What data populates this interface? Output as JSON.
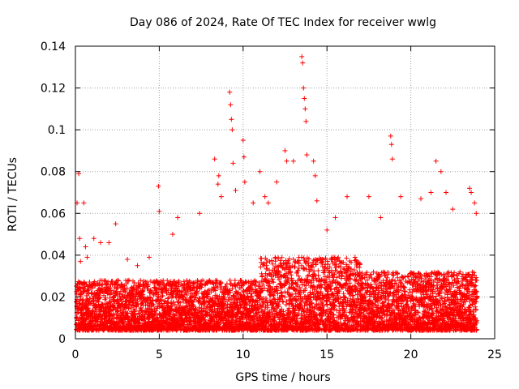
{
  "chart_data": {
    "type": "scatter",
    "title": "Day 086 of 2024, Rate Of TEC Index for receiver wwlg",
    "xlabel": "GPS time / hours",
    "ylabel": "ROTI / TECUs",
    "xlim": [
      0,
      25
    ],
    "ylim": [
      0,
      0.14
    ],
    "x_ticks": [
      0,
      5,
      10,
      15,
      20,
      25
    ],
    "y_ticks": [
      0,
      0.02,
      0.04,
      0.06,
      0.08,
      0.1,
      0.12,
      0.14
    ],
    "x_tick_labels": [
      "0",
      "5",
      "10",
      "15",
      "20",
      "25"
    ],
    "y_tick_labels": [
      "0",
      "0.02",
      "0.04",
      "0.06",
      "0.08",
      "0.1",
      "0.12",
      "0.14"
    ],
    "grid": true,
    "marker": "+",
    "color": "#ff0000",
    "series": [
      {
        "name": "ROTI",
        "x": [
          0.1,
          0.2,
          0.25,
          0.3,
          0.5,
          0.6,
          0.7,
          1.1,
          1.5,
          2.0,
          2.4,
          3.1,
          3.7,
          4.4,
          4.95,
          5.0,
          5.8,
          6.1,
          7.4,
          8.3,
          8.5,
          8.55,
          8.7,
          9.2,
          9.25,
          9.3,
          9.35,
          9.4,
          9.55,
          10.0,
          10.05,
          10.1,
          10.6,
          11.0,
          11.3,
          11.5,
          12.0,
          12.5,
          12.6,
          13.0,
          13.5,
          13.55,
          13.6,
          13.65,
          13.7,
          13.75,
          13.8,
          14.2,
          14.3,
          14.4,
          15.0,
          15.5,
          16.2,
          17.5,
          18.2,
          18.8,
          18.85,
          18.9,
          19.4,
          20.6,
          21.2,
          21.5,
          21.8,
          22.1,
          22.5,
          23.5,
          23.6,
          23.8,
          23.9,
          0.5,
          1.0,
          1.5,
          2.0,
          2.5,
          3.0,
          3.5,
          4.0,
          4.5,
          5.0,
          5.5,
          6.0,
          6.5,
          7.0,
          7.5,
          8.0,
          8.5,
          9.0,
          9.5,
          10.0,
          10.5,
          11.0,
          11.5,
          12.0,
          12.5,
          13.0,
          13.5,
          14.0,
          14.5,
          15.0,
          15.5,
          16.0,
          16.5,
          17.0,
          17.5,
          18.0,
          18.5,
          19.0,
          19.5,
          20.0,
          20.5,
          21.0,
          21.5,
          22.0,
          22.5,
          23.0,
          23.5
        ],
        "y": [
          0.065,
          0.079,
          0.048,
          0.037,
          0.065,
          0.044,
          0.039,
          0.048,
          0.046,
          0.046,
          0.055,
          0.038,
          0.035,
          0.039,
          0.073,
          0.061,
          0.05,
          0.058,
          0.06,
          0.086,
          0.074,
          0.078,
          0.068,
          0.118,
          0.112,
          0.105,
          0.1,
          0.084,
          0.071,
          0.095,
          0.087,
          0.075,
          0.065,
          0.08,
          0.068,
          0.065,
          0.075,
          0.09,
          0.085,
          0.085,
          0.135,
          0.132,
          0.12,
          0.115,
          0.11,
          0.104,
          0.088,
          0.085,
          0.078,
          0.066,
          0.052,
          0.058,
          0.068,
          0.068,
          0.058,
          0.097,
          0.093,
          0.086,
          0.068,
          0.067,
          0.07,
          0.085,
          0.08,
          0.07,
          0.062,
          0.072,
          0.07,
          0.065,
          0.06,
          0.012,
          0.01,
          0.015,
          0.011,
          0.013,
          0.01,
          0.012,
          0.011,
          0.014,
          0.012,
          0.015,
          0.013,
          0.014,
          0.012,
          0.013,
          0.015,
          0.016,
          0.015,
          0.017,
          0.018,
          0.016,
          0.022,
          0.024,
          0.025,
          0.026,
          0.024,
          0.028,
          0.022,
          0.02,
          0.018,
          0.019,
          0.02,
          0.018,
          0.019,
          0.018,
          0.02,
          0.019,
          0.021,
          0.02,
          0.018,
          0.019,
          0.02,
          0.019,
          0.018,
          0.017,
          0.016,
          0.018
        ]
      }
    ]
  }
}
